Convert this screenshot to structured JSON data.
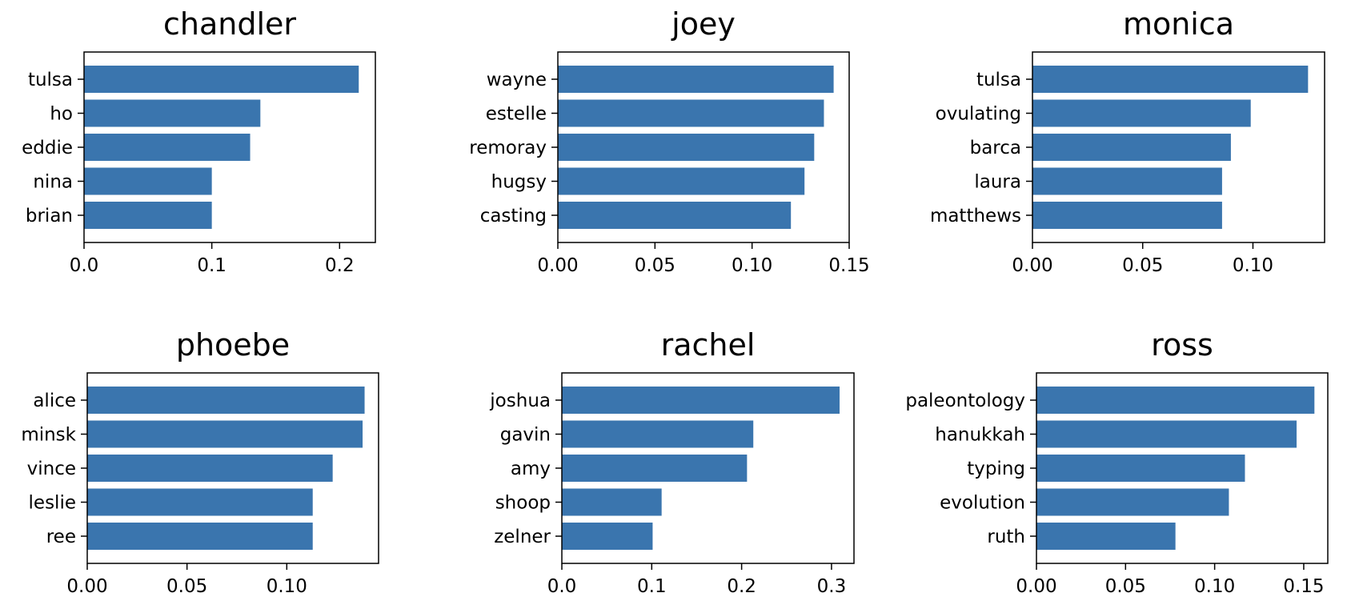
{
  "chart_data": [
    {
      "type": "bar",
      "orientation": "horizontal",
      "title": "chandler",
      "categories": [
        "tulsa",
        "ho",
        "eddie",
        "nina",
        "brian"
      ],
      "values": [
        0.215,
        0.138,
        0.13,
        0.1,
        0.1
      ],
      "xlim": [
        0,
        0.228
      ],
      "xticks": [
        0,
        0.1,
        0.2
      ],
      "xtick_labels": [
        "0.0",
        "0.1",
        "0.2"
      ],
      "grid": false,
      "bar_color": "#3a75ae"
    },
    {
      "type": "bar",
      "orientation": "horizontal",
      "title": "joey",
      "categories": [
        "wayne",
        "estelle",
        "remoray",
        "hugsy",
        "casting"
      ],
      "values": [
        0.142,
        0.137,
        0.132,
        0.127,
        0.12
      ],
      "xlim": [
        0,
        0.15
      ],
      "xticks": [
        0,
        0.05,
        0.1,
        0.15
      ],
      "xtick_labels": [
        "0.00",
        "0.05",
        "0.10",
        "0.15"
      ],
      "grid": false,
      "bar_color": "#3a75ae"
    },
    {
      "type": "bar",
      "orientation": "horizontal",
      "title": "monica",
      "categories": [
        "tulsa",
        "ovulating",
        "barca",
        "laura",
        "matthews"
      ],
      "values": [
        0.125,
        0.099,
        0.09,
        0.086,
        0.086
      ],
      "xlim": [
        0,
        0.1325
      ],
      "xticks": [
        0,
        0.05,
        0.1
      ],
      "xtick_labels": [
        "0.00",
        "0.05",
        "0.10"
      ],
      "grid": false,
      "bar_color": "#3a75ae"
    },
    {
      "type": "bar",
      "orientation": "horizontal",
      "title": "phoebe",
      "categories": [
        "alice",
        "minsk",
        "vince",
        "leslie",
        "ree"
      ],
      "values": [
        0.139,
        0.138,
        0.123,
        0.113,
        0.113
      ],
      "xlim": [
        0,
        0.146
      ],
      "xticks": [
        0,
        0.05,
        0.1
      ],
      "xtick_labels": [
        "0.00",
        "0.05",
        "0.10"
      ],
      "grid": false,
      "bar_color": "#3a75ae"
    },
    {
      "type": "bar",
      "orientation": "horizontal",
      "title": "rachel",
      "categories": [
        "joshua",
        "gavin",
        "amy",
        "shoop",
        "zelner"
      ],
      "values": [
        0.309,
        0.213,
        0.206,
        0.111,
        0.101
      ],
      "xlim": [
        0,
        0.325
      ],
      "xticks": [
        0,
        0.1,
        0.2,
        0.3
      ],
      "xtick_labels": [
        "0.0",
        "0.1",
        "0.2",
        "0.3"
      ],
      "grid": false,
      "bar_color": "#3a75ae"
    },
    {
      "type": "bar",
      "orientation": "horizontal",
      "title": "ross",
      "categories": [
        "paleontology",
        "hanukkah",
        "typing",
        "evolution",
        "ruth"
      ],
      "values": [
        0.156,
        0.146,
        0.117,
        0.108,
        0.078
      ],
      "xlim": [
        0,
        0.1635
      ],
      "xticks": [
        0,
        0.05,
        0.1,
        0.15
      ],
      "xtick_labels": [
        "0.00",
        "0.05",
        "0.10",
        "0.15"
      ],
      "grid": false,
      "bar_color": "#3a75ae"
    }
  ]
}
